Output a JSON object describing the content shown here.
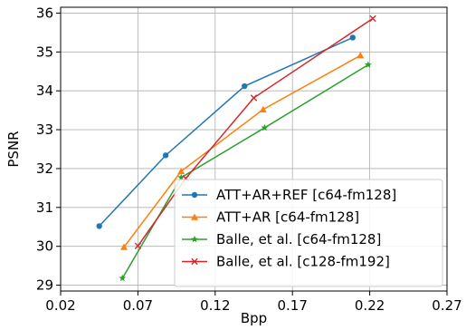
{
  "chart_data": {
    "type": "line",
    "title": "",
    "xlabel": "Bpp",
    "ylabel": "PSNR",
    "xlim": [
      0.02,
      0.27
    ],
    "ylim": [
      28.85,
      36.15
    ],
    "xticks": [
      0.02,
      0.07,
      0.12,
      0.17,
      0.22,
      0.27
    ],
    "xtick_labels": [
      "0.02",
      "0.07",
      "0.12",
      "0.17",
      "0.22",
      "0.27"
    ],
    "yticks": [
      29,
      30,
      31,
      32,
      33,
      34,
      35,
      36
    ],
    "ytick_labels": [
      "29",
      "30",
      "31",
      "32",
      "33",
      "34",
      "35",
      "36"
    ],
    "grid": true,
    "legend_position": "bottom-right",
    "series": [
      {
        "name": "ATT+AR+REF [c64-fm128]",
        "color": "#1f77b4",
        "marker": "circle",
        "x": [
          0.045,
          0.088,
          0.139,
          0.209
        ],
        "y": [
          30.52,
          32.34,
          34.12,
          35.37
        ]
      },
      {
        "name": "ATT+AR [c64-fm128]",
        "color": "#ff7f0e",
        "marker": "triangle",
        "x": [
          0.061,
          0.098,
          0.151,
          0.214
        ],
        "y": [
          29.98,
          31.93,
          33.52,
          34.91
        ]
      },
      {
        "name": "Balle, et al. [c64-fm128]",
        "color": "#2ca02c",
        "marker": "star",
        "x": [
          0.06,
          0.098,
          0.152,
          0.219
        ],
        "y": [
          29.18,
          31.77,
          33.05,
          34.67
        ]
      },
      {
        "name": "Balle, et al. [c128-fm192]",
        "color": "#d62728",
        "marker": "x",
        "x": [
          0.07,
          0.101,
          0.145,
          0.222
        ],
        "y": [
          30.01,
          31.75,
          33.82,
          35.86
        ]
      }
    ]
  }
}
